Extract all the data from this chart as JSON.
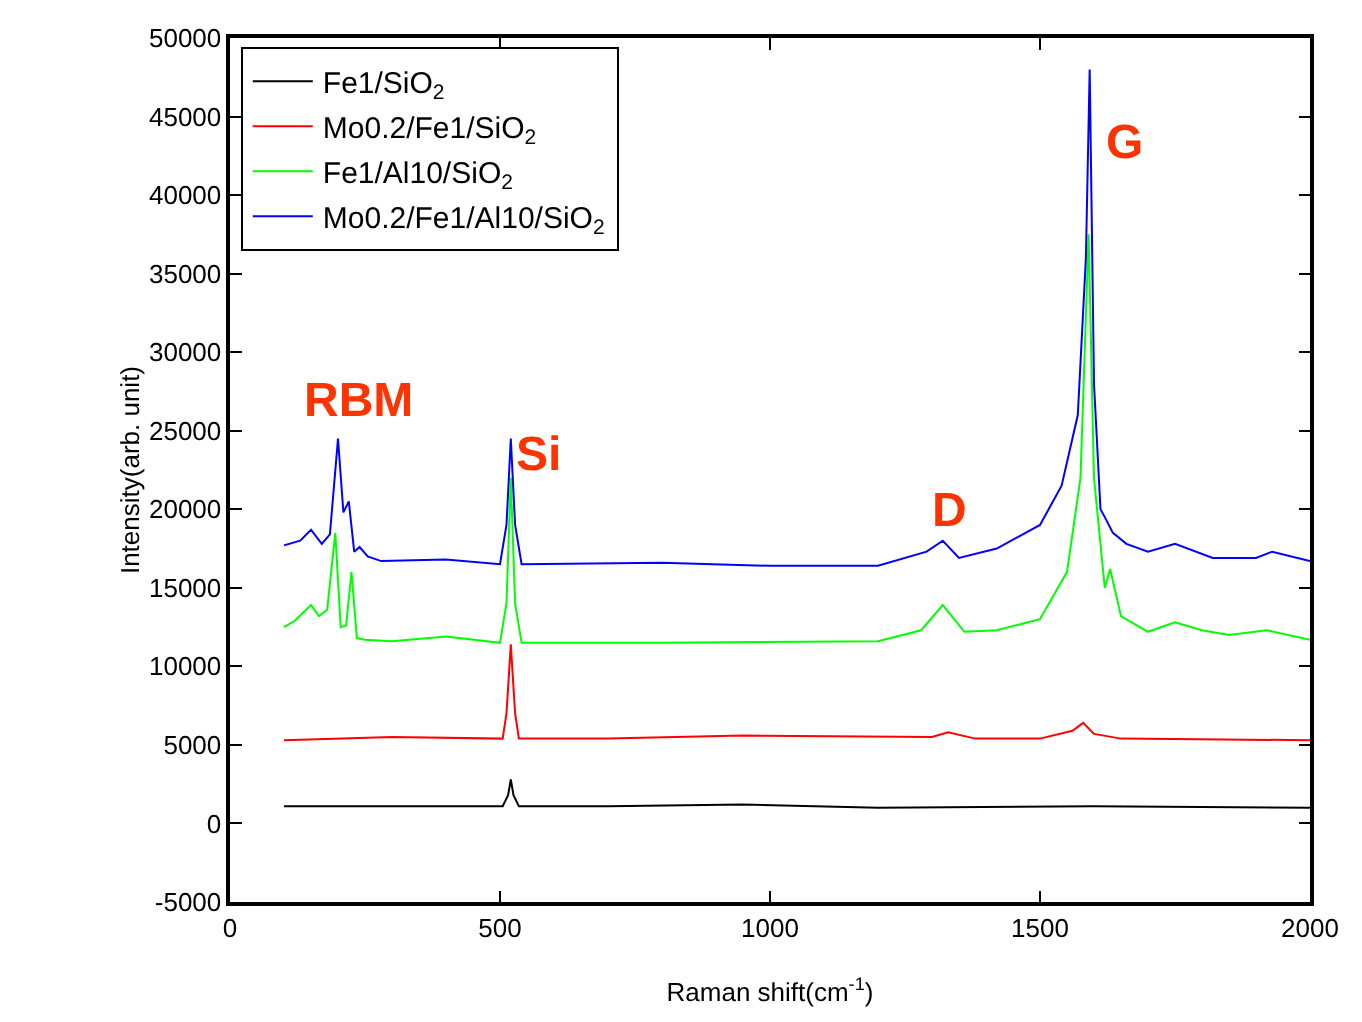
{
  "chart_data": {
    "type": "line",
    "xlabel": "Raman shift(cm$^{-1}$)",
    "ylabel": "Intensity(arb. unit)",
    "xlim": [
      0,
      2000
    ],
    "xticks": [
      0,
      500,
      1000,
      1500,
      2000
    ],
    "ylim": [
      -5000,
      50000
    ],
    "yticks": [
      -5000,
      0,
      5000,
      10000,
      15000,
      20000,
      25000,
      30000,
      35000,
      40000,
      45000,
      50000
    ],
    "grid": false,
    "legend": "top left",
    "line_style": "solid",
    "marker": "none",
    "annotations": [
      "RBM",
      "Si",
      "D",
      "G"
    ],
    "series": [
      {
        "name": "Fe1/SiO$_{2}$",
        "color": "#000000",
        "x": [
          100,
          400,
          505,
          515,
          520,
          525,
          535,
          700,
          950,
          1200,
          1600,
          2000
        ],
        "values": [
          1100,
          1100,
          1100,
          1800,
          2800,
          1800,
          1100,
          1100,
          1200,
          1000,
          1100,
          1000
        ]
      },
      {
        "name": "Mo0.2/Fe1/SiO$_{2}$",
        "color": "#ff0000",
        "x": [
          100,
          300,
          505,
          512,
          520,
          528,
          535,
          700,
          950,
          1300,
          1330,
          1380,
          1500,
          1560,
          1580,
          1600,
          1650,
          2000
        ],
        "values": [
          5300,
          5500,
          5400,
          7000,
          11400,
          7000,
          5400,
          5400,
          5600,
          5500,
          5800,
          5400,
          5400,
          5900,
          6400,
          5700,
          5400,
          5300
        ]
      },
      {
        "name": "Fe1/Al10/SiO$_{2}$",
        "color": "#00ff00",
        "x": [
          100,
          120,
          150,
          165,
          180,
          195,
          205,
          215,
          225,
          235,
          250,
          300,
          400,
          500,
          512,
          520,
          528,
          540,
          800,
          1200,
          1280,
          1320,
          1360,
          1420,
          1500,
          1550,
          1575,
          1590,
          1600,
          1610,
          1620,
          1630,
          1650,
          1700,
          1750,
          1800,
          1850,
          1920,
          2000
        ],
        "values": [
          12500,
          12900,
          13900,
          13200,
          13600,
          18500,
          12500,
          12600,
          16000,
          11800,
          11700,
          11600,
          11900,
          11500,
          14000,
          22000,
          14000,
          11500,
          11500,
          11600,
          12300,
          13900,
          12200,
          12300,
          13000,
          16000,
          22000,
          37500,
          22000,
          18500,
          15000,
          16200,
          13200,
          12200,
          12800,
          12300,
          12000,
          12300,
          11700
        ]
      },
      {
        "name": "Mo0.2/Fe1/Al10/SiO$_{2}$",
        "color": "#0000ff",
        "x": [
          100,
          130,
          150,
          170,
          185,
          200,
          210,
          220,
          230,
          240,
          255,
          280,
          400,
          500,
          512,
          520,
          528,
          540,
          800,
          1000,
          1200,
          1290,
          1320,
          1350,
          1420,
          1500,
          1540,
          1570,
          1585,
          1592,
          1600,
          1612,
          1620,
          1635,
          1660,
          1700,
          1750,
          1820,
          1900,
          1930,
          2000
        ],
        "values": [
          17700,
          18000,
          18700,
          17800,
          18400,
          24500,
          19800,
          20500,
          17300,
          17600,
          17000,
          16700,
          16800,
          16500,
          19000,
          24500,
          19000,
          16500,
          16600,
          16400,
          16400,
          17300,
          18000,
          16900,
          17500,
          19000,
          21500,
          26000,
          36000,
          48000,
          28000,
          20000,
          19500,
          18500,
          17800,
          17300,
          17800,
          16900,
          16900,
          17300,
          16700
        ]
      }
    ]
  }
}
